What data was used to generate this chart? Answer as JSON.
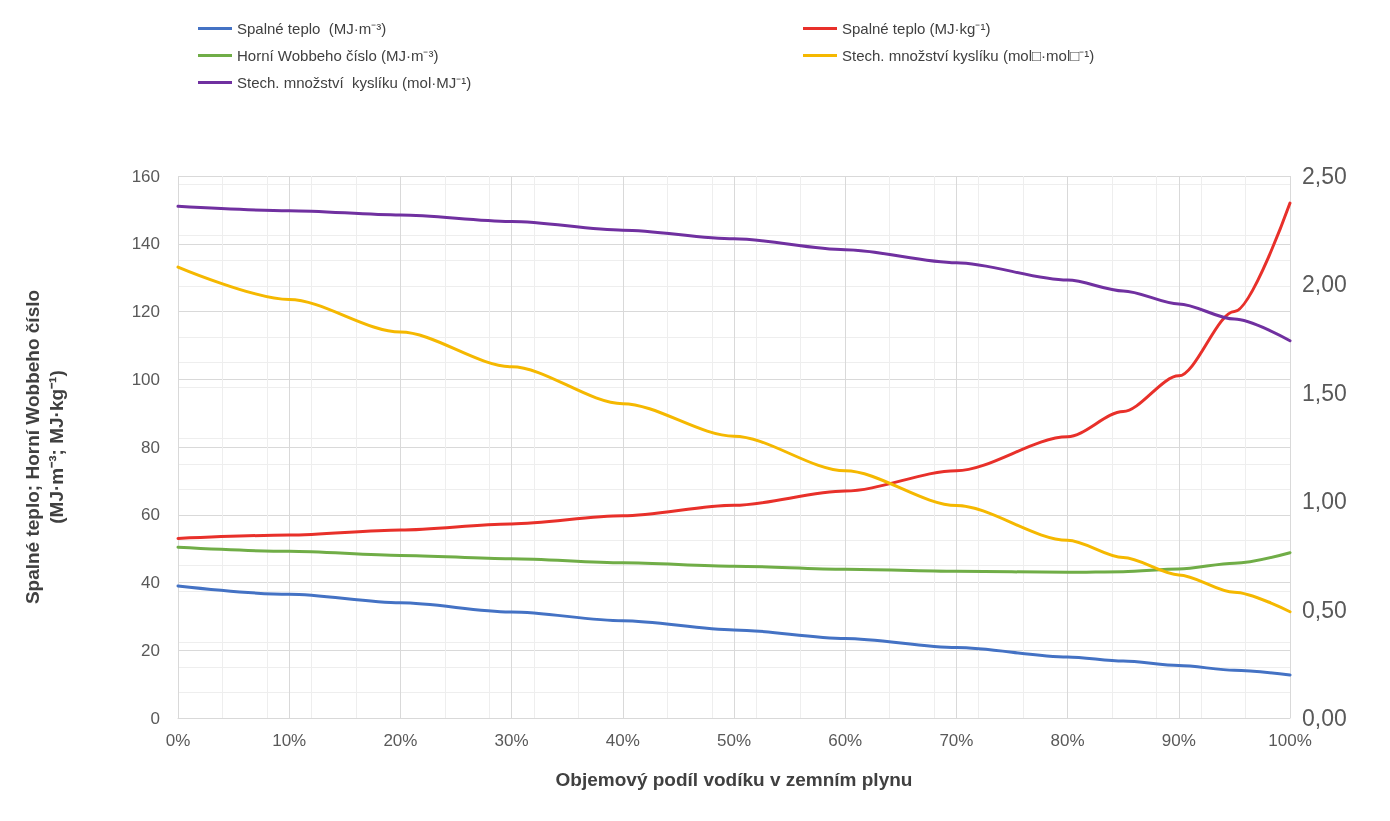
{
  "chart_data": {
    "type": "line",
    "xlabel": "Objemový podíl vodíku v zemním plynu",
    "ylabel": "Spalné teplo; Horní Wobbeho číslo\n(MJ·m⁻³; MJ·kg⁻¹)",
    "x": [
      0,
      10,
      20,
      30,
      40,
      50,
      60,
      70,
      80,
      85,
      90,
      95,
      100
    ],
    "xlim": [
      0,
      100
    ],
    "xticks": [
      {
        "value": 0,
        "label": "0%"
      },
      {
        "value": 10,
        "label": "10%"
      },
      {
        "value": 20,
        "label": "20%"
      },
      {
        "value": 30,
        "label": "30%"
      },
      {
        "value": 40,
        "label": "40%"
      },
      {
        "value": 50,
        "label": "50%"
      },
      {
        "value": 60,
        "label": "60%"
      },
      {
        "value": 70,
        "label": "70%"
      },
      {
        "value": 80,
        "label": "80%"
      },
      {
        "value": 90,
        "label": "90%"
      },
      {
        "value": 100,
        "label": "100%"
      }
    ],
    "ylim": [
      0,
      160
    ],
    "yticks": [
      0,
      20,
      40,
      60,
      80,
      100,
      120,
      140,
      160
    ],
    "y2lim": [
      0,
      2.5
    ],
    "y2ticks": [
      {
        "value": 0,
        "label": "0,00"
      },
      {
        "value": 0.5,
        "label": "0,50"
      },
      {
        "value": 1,
        "label": "1,00"
      },
      {
        "value": 1.5,
        "label": "1,50"
      },
      {
        "value": 2,
        "label": "2,00"
      },
      {
        "value": 2.5,
        "label": "2,50"
      }
    ],
    "grid": true,
    "legend": "top",
    "marker": "none",
    "line_style": "solid",
    "series": [
      {
        "name": "Spalné teplo  (MJ·m⁻³)",
        "color": "#4472c4",
        "values": [
          39,
          36.5,
          34,
          31.3,
          28.7,
          26,
          23.5,
          20.8,
          18,
          16.8,
          15.5,
          14.1,
          12.7
        ]
      },
      {
        "name": "Spalné teplo (MJ·kg⁻¹)",
        "color": "#e8302a",
        "values": [
          53,
          54,
          55.5,
          57.3,
          59.7,
          62.8,
          67,
          73,
          83,
          90.5,
          101,
          120,
          152
        ]
      },
      {
        "name": "Horní Wobbeho číslo (MJ·m⁻³)",
        "color": "#70ad47",
        "values": [
          50.4,
          49.2,
          48,
          47,
          45.8,
          44.8,
          43.9,
          43.3,
          43,
          43.2,
          44,
          45.7,
          48.8
        ]
      },
      {
        "name": "Stech. množství kyslíku (mol□·mol□⁻¹)",
        "color": "#f5b800",
        "axis": "y2",
        "values": [
          2.08,
          1.93,
          1.78,
          1.62,
          1.45,
          1.3,
          1.14,
          0.98,
          0.82,
          0.74,
          0.66,
          0.58,
          0.49
        ]
      },
      {
        "name": "Stech. množství  kyslíku (mol·MJ⁻¹)",
        "color": "#7030a0",
        "axis": "y2",
        "values": [
          2.36,
          2.34,
          2.32,
          2.29,
          2.25,
          2.21,
          2.16,
          2.1,
          2.02,
          1.97,
          1.91,
          1.84,
          1.74
        ]
      }
    ]
  }
}
